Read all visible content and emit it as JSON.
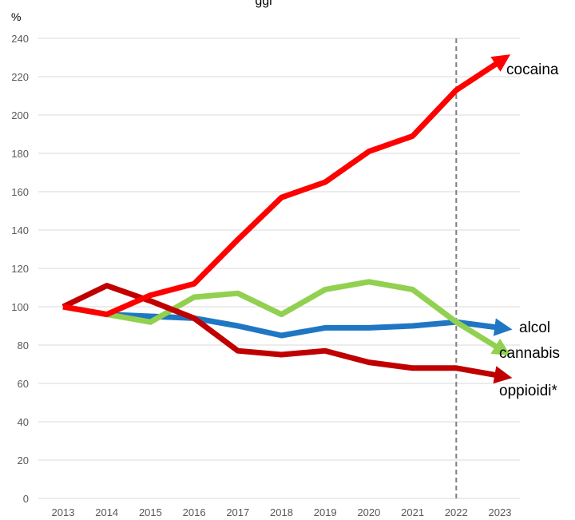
{
  "chart_data": {
    "type": "line",
    "title": "ggi",
    "ylabel": "%",
    "ylim": [
      0,
      240
    ],
    "yticks": [
      0,
      20,
      40,
      60,
      80,
      100,
      120,
      140,
      160,
      180,
      200,
      220,
      240
    ],
    "x": [
      "2013",
      "2014",
      "2015",
      "2016",
      "2017",
      "2018",
      "2019",
      "2020",
      "2021",
      "2022",
      "2023"
    ],
    "grid": true,
    "reference_line": {
      "x": "2022",
      "style": "dashed"
    },
    "series": [
      {
        "name": "cocaina",
        "color": "#ff0000",
        "values": [
          100,
          96,
          106,
          112,
          135,
          157,
          165,
          181,
          189,
          213,
          228
        ]
      },
      {
        "name": "alcol",
        "color": "#1f77c4",
        "values": [
          100,
          96,
          95,
          94,
          90,
          85,
          89,
          89,
          90,
          92,
          89
        ]
      },
      {
        "name": "cannabis",
        "color": "#92d050",
        "values": [
          100,
          96,
          92,
          105,
          107,
          96,
          109,
          113,
          109,
          92,
          78
        ]
      },
      {
        "name": "oppioidi*",
        "color": "#c00000",
        "values": [
          100,
          111,
          103,
          94,
          77,
          75,
          77,
          71,
          68,
          68,
          64
        ]
      }
    ]
  }
}
